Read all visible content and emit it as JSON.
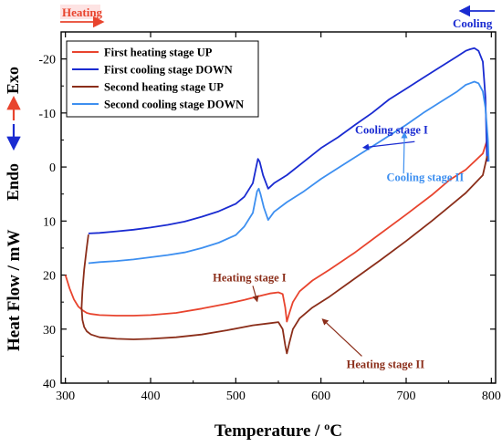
{
  "chart_data": {
    "type": "line",
    "title": "",
    "xlabel": "Temperature / ºC",
    "ylabel": "Heat Flow / mW",
    "xlim": [
      295,
      805
    ],
    "ylim": [
      40,
      -25
    ],
    "y_inverted": true,
    "xticks": [
      300,
      400,
      500,
      600,
      700,
      800
    ],
    "yticks": [
      -20,
      -10,
      0,
      10,
      20,
      30,
      40
    ],
    "grid": false,
    "legend_position": "top-left",
    "series": [
      {
        "name": "First heating stage UP",
        "color": "#e8442e",
        "x": [
          300,
          305,
          310,
          315,
          320,
          325,
          330,
          340,
          360,
          380,
          400,
          430,
          460,
          490,
          510,
          520,
          530,
          540,
          550,
          555,
          558,
          560,
          563,
          567,
          575,
          590,
          610,
          640,
          670,
          700,
          730,
          750,
          770,
          790,
          795
        ],
        "y": [
          20,
          22.5,
          24.5,
          25.8,
          26.5,
          27,
          27.2,
          27.4,
          27.5,
          27.5,
          27.4,
          27,
          26.2,
          25.3,
          24.6,
          24.2,
          23.8,
          23.4,
          23.2,
          23.5,
          26,
          28.6,
          27,
          25,
          23,
          21,
          19,
          15.8,
          12.3,
          8.8,
          5.2,
          2.5,
          0.5,
          -2.5,
          -5
        ]
      },
      {
        "name": "First cooling stage DOWN",
        "color": "#1a2bd1",
        "x": [
          795,
          793,
          790,
          785,
          780,
          775,
          770,
          760,
          740,
          720,
          700,
          680,
          660,
          640,
          620,
          600,
          580,
          560,
          545,
          538,
          532,
          528,
          526,
          524,
          520,
          510,
          500,
          480,
          460,
          440,
          420,
          400,
          380,
          360,
          340,
          327
        ],
        "y": [
          -1,
          -13,
          -19.5,
          -21.5,
          -22,
          -21.8,
          -21.5,
          -20.5,
          -18.5,
          -16.5,
          -14.5,
          -12.5,
          -10,
          -7.8,
          -5.5,
          -3.5,
          -1,
          1.5,
          3,
          4,
          1.5,
          -1,
          -1.5,
          0,
          3,
          5.5,
          6.8,
          8.2,
          9.2,
          10.1,
          10.7,
          11.2,
          11.6,
          11.9,
          12.2,
          12.3
        ]
      },
      {
        "name": "Second heating stage UP",
        "color": "#8b2e1a",
        "x": [
          327,
          325,
          322,
          320,
          319,
          320,
          322,
          325,
          330,
          340,
          360,
          380,
          400,
          430,
          460,
          490,
          520,
          540,
          550,
          555,
          558,
          560,
          563,
          567,
          575,
          590,
          610,
          640,
          670,
          700,
          730,
          750,
          770,
          790,
          795
        ],
        "y": [
          12.5,
          15,
          19,
          23,
          26,
          28.3,
          29.6,
          30.4,
          31,
          31.5,
          31.8,
          31.9,
          31.8,
          31.5,
          31,
          30.2,
          29.3,
          28.9,
          28.7,
          30,
          33,
          34.5,
          32.5,
          30,
          28,
          26,
          24,
          20.6,
          17.2,
          13.7,
          10,
          7.4,
          4.8,
          1.5,
          -2
        ]
      },
      {
        "name": "Second cooling stage DOWN",
        "color": "#3d8ff0",
        "x": [
          797,
          796,
          793,
          790,
          785,
          780,
          775,
          770,
          760,
          740,
          720,
          700,
          680,
          660,
          640,
          620,
          600,
          580,
          560,
          545,
          538,
          533,
          529,
          527,
          525,
          520,
          510,
          500,
          480,
          460,
          440,
          420,
          400,
          380,
          360,
          340,
          327
        ],
        "y": [
          -1,
          -5,
          -11,
          -14,
          -15.5,
          -15.8,
          -15.5,
          -15.2,
          -14,
          -12,
          -10,
          -7.8,
          -5.8,
          -3.8,
          -1.8,
          0.2,
          2.2,
          4.5,
          6.5,
          8.3,
          9.8,
          7.5,
          5,
          4,
          4.5,
          8.5,
          11,
          12.6,
          14,
          15,
          15.8,
          16.3,
          16.7,
          17.1,
          17.4,
          17.6,
          17.8
        ]
      }
    ],
    "annotations": [
      {
        "text": "Cooling stage I",
        "color": "#1a2bd1",
        "x": 640,
        "y": -6.2
      },
      {
        "text": "Cooling stage II",
        "color": "#3d8ff0",
        "x": 677,
        "y": 2.6
      },
      {
        "text": "Heating stage I",
        "color": "#8b2e1a",
        "x": 473,
        "y": 21.2
      },
      {
        "text": "Heating stage II",
        "color": "#8b2e1a",
        "x": 630,
        "y": 37.2
      }
    ],
    "corner_labels": {
      "heating": "Heating",
      "cooling": "Cooling",
      "exo": "Exo",
      "endo": "Endo"
    }
  },
  "colors": {
    "heating_arrow": "#e8442e",
    "cooling_arrow": "#1a2bd1",
    "exo": "#e8442e",
    "endo": "#1a2bd1"
  }
}
